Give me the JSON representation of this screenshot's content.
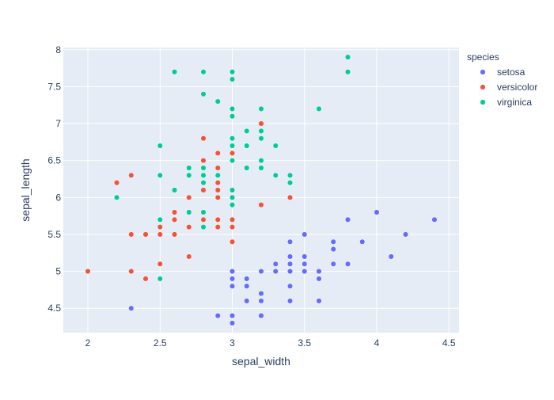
{
  "chart_data": {
    "type": "scatter",
    "title": "",
    "xlabel": "sepal_width",
    "ylabel": "sepal_length",
    "xlim": [
      1.83,
      4.57
    ],
    "ylim": [
      4.17,
      8.03
    ],
    "x_ticks": [
      "2",
      "2.5",
      "3",
      "3.5",
      "4",
      "4.5"
    ],
    "y_ticks": [
      "4.5",
      "5",
      "5.5",
      "6",
      "6.5",
      "7",
      "7.5",
      "8"
    ],
    "grid": true,
    "legend_title": "species",
    "legend_position": "top-right",
    "series": [
      {
        "name": "setosa",
        "color": "#636efa",
        "x": [
          3.5,
          3.0,
          3.2,
          3.1,
          3.6,
          3.9,
          3.4,
          3.4,
          2.9,
          3.1,
          3.7,
          3.4,
          3.0,
          3.0,
          4.0,
          4.4,
          3.9,
          3.5,
          3.8,
          3.8,
          3.4,
          3.7,
          3.6,
          3.3,
          3.4,
          3.0,
          3.4,
          3.5,
          3.4,
          3.2,
          3.1,
          3.4,
          4.1,
          4.2,
          3.1,
          3.2,
          3.5,
          3.6,
          3.0,
          3.4,
          3.5,
          2.3,
          3.2,
          3.5,
          3.8,
          3.0,
          3.8,
          3.2,
          3.7,
          3.3
        ],
        "y": [
          5.1,
          4.9,
          4.7,
          4.6,
          5.0,
          5.4,
          4.6,
          5.0,
          4.4,
          4.9,
          5.4,
          4.8,
          4.8,
          4.3,
          5.8,
          5.7,
          5.4,
          5.1,
          5.7,
          5.1,
          5.4,
          5.1,
          4.6,
          5.1,
          4.8,
          5.0,
          5.0,
          5.2,
          5.2,
          4.7,
          4.8,
          5.4,
          5.2,
          5.5,
          4.9,
          5.0,
          5.5,
          4.9,
          4.4,
          5.1,
          5.0,
          4.5,
          4.4,
          5.0,
          5.1,
          4.8,
          5.1,
          4.6,
          5.3,
          5.0
        ]
      },
      {
        "name": "versicolor",
        "color": "#EF553B",
        "x": [
          3.2,
          3.2,
          3.1,
          2.3,
          2.8,
          2.8,
          3.3,
          2.4,
          2.9,
          2.7,
          2.0,
          3.0,
          2.2,
          2.9,
          2.9,
          3.1,
          3.0,
          2.7,
          2.2,
          2.5,
          3.2,
          2.8,
          2.5,
          2.8,
          2.9,
          3.0,
          2.8,
          3.0,
          2.9,
          2.6,
          2.4,
          2.4,
          2.7,
          2.7,
          3.0,
          3.4,
          3.1,
          2.3,
          3.0,
          2.5,
          2.6,
          3.0,
          2.6,
          2.3,
          2.7,
          3.0,
          2.9,
          2.9,
          2.5,
          2.8
        ],
        "y": [
          7.0,
          6.4,
          6.9,
          5.5,
          6.5,
          5.7,
          6.3,
          4.9,
          6.6,
          5.2,
          5.0,
          5.9,
          6.0,
          6.1,
          5.6,
          6.7,
          5.6,
          5.8,
          6.2,
          5.6,
          5.9,
          6.1,
          6.3,
          6.1,
          6.4,
          6.6,
          6.8,
          6.7,
          6.0,
          5.7,
          5.5,
          5.5,
          5.8,
          6.0,
          5.4,
          6.0,
          6.7,
          6.3,
          5.6,
          5.5,
          5.5,
          6.1,
          5.8,
          5.0,
          5.6,
          5.7,
          5.7,
          6.2,
          5.1,
          5.7
        ]
      },
      {
        "name": "virginica",
        "color": "#00cc96",
        "x": [
          3.3,
          2.7,
          3.0,
          2.9,
          3.0,
          3.0,
          2.5,
          2.9,
          2.5,
          3.6,
          3.2,
          2.7,
          3.0,
          2.5,
          2.8,
          3.2,
          3.0,
          3.8,
          2.6,
          2.2,
          3.2,
          2.8,
          2.8,
          2.7,
          3.3,
          3.2,
          2.8,
          3.0,
          2.8,
          3.0,
          2.8,
          3.8,
          2.8,
          2.8,
          2.6,
          3.0,
          3.4,
          3.1,
          3.0,
          3.1,
          3.1,
          3.1,
          2.7,
          3.2,
          3.3,
          3.0,
          2.5,
          3.0,
          3.4,
          3.0
        ],
        "y": [
          6.3,
          5.8,
          7.1,
          6.3,
          6.5,
          7.6,
          4.9,
          7.3,
          6.7,
          7.2,
          6.5,
          6.4,
          6.8,
          5.7,
          5.8,
          6.4,
          6.5,
          7.7,
          7.7,
          6.0,
          6.9,
          5.6,
          7.7,
          6.3,
          6.7,
          7.2,
          6.2,
          6.1,
          6.4,
          7.2,
          7.4,
          7.9,
          6.4,
          6.3,
          6.1,
          7.7,
          6.3,
          6.4,
          6.0,
          6.9,
          6.7,
          6.9,
          5.8,
          6.8,
          6.7,
          6.7,
          6.3,
          6.5,
          6.2,
          5.9
        ]
      }
    ]
  }
}
